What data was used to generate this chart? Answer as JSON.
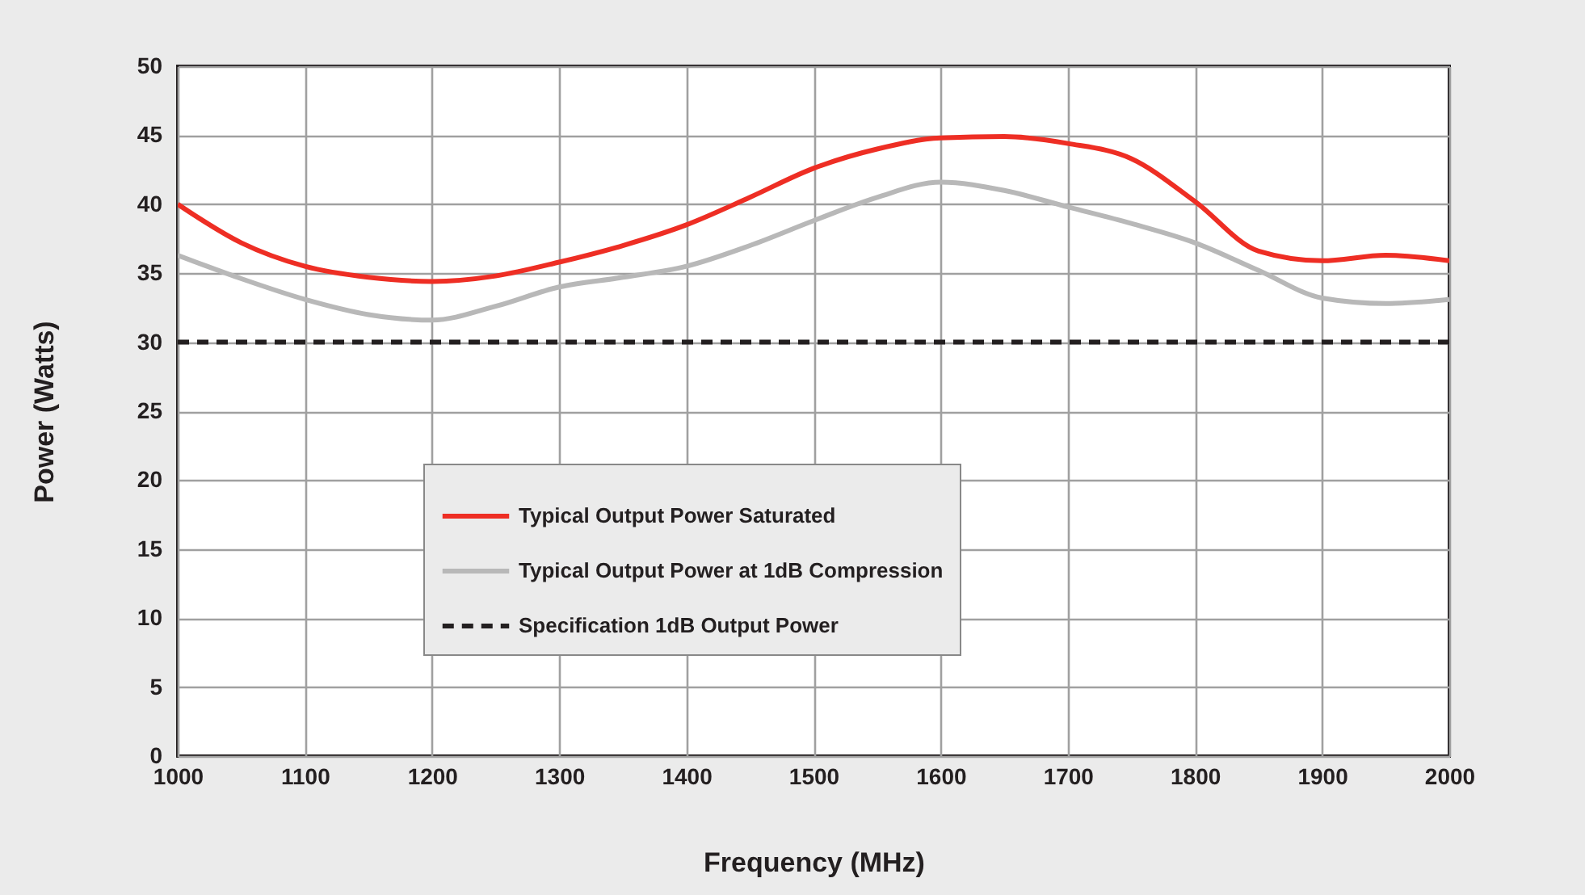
{
  "chart_data": {
    "type": "line",
    "xlabel": "Frequency (MHz)",
    "ylabel": "Power (Watts)",
    "x": [
      1000,
      1050,
      1100,
      1150,
      1200,
      1250,
      1300,
      1350,
      1400,
      1450,
      1500,
      1550,
      1600,
      1650,
      1700,
      1750,
      1800,
      1850,
      1900,
      1950,
      2000
    ],
    "series": [
      {
        "name": "Typical Output Power Saturated",
        "color": "#ee2e24",
        "values": [
          40,
          37.2,
          35.5,
          34.7,
          34.4,
          34.8,
          35.8,
          37,
          38.5,
          40.5,
          42.6,
          44,
          44.8,
          44.9,
          44.4,
          43.3,
          40.2,
          36.6,
          35.9,
          36.3,
          35.9
        ]
      },
      {
        "name": "Typical Output Power at 1dB Compression",
        "color": "#b8b8b8",
        "values": [
          36.3,
          34.6,
          33.1,
          32,
          31.6,
          32.6,
          34,
          34.7,
          35.5,
          37,
          38.8,
          40.5,
          41.6,
          41,
          39.8,
          38.6,
          37.2,
          35.2,
          33.2,
          32.8,
          33.1
        ]
      }
    ],
    "ref_lines": [
      {
        "axis": "y",
        "value": 30,
        "label": "Specification 1dB Output Power",
        "color": "#231f20",
        "line_style": "dashed"
      }
    ],
    "xlim": [
      1000,
      2000
    ],
    "xticks": [
      1000,
      1100,
      1200,
      1300,
      1400,
      1500,
      1600,
      1700,
      1800,
      1900,
      2000
    ],
    "ylim": [
      0,
      50
    ],
    "yticks": [
      0,
      5,
      10,
      15,
      20,
      25,
      30,
      35,
      40,
      45,
      50
    ],
    "grid": true,
    "legend": "bottom"
  }
}
